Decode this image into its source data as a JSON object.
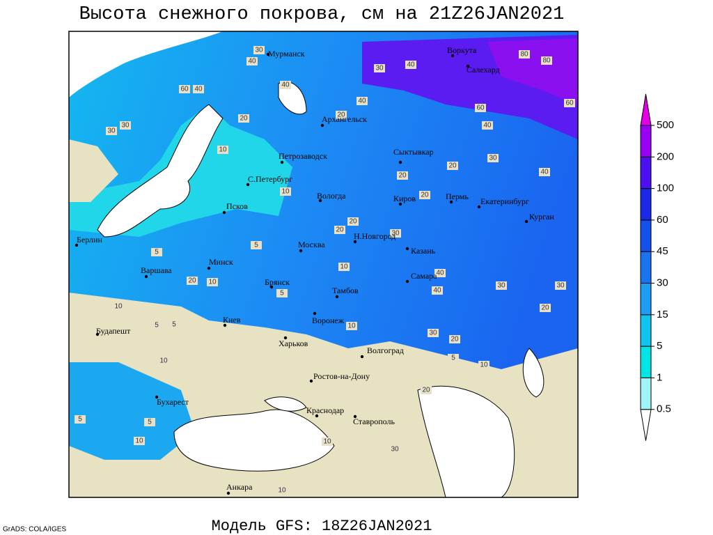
{
  "header": {
    "title": "Высота снежного покрова, см на 21Z26JAN2021"
  },
  "map": {
    "cities": [
      "Мурманск",
      "Воркута",
      "Салехард",
      "Архангельск",
      "Петрозаводск",
      "Сыктывкар",
      "С.Петербург",
      "Вологда",
      "Киров",
      "Пермь",
      "Екатеринбург",
      "Курган",
      "Псков",
      "Берлин",
      "Москва",
      "Н.Новгород",
      "Казань",
      "Минск",
      "Варшава",
      "Самара",
      "Брянск",
      "Тамбов",
      "Киев",
      "Воронеж",
      "Будапешт",
      "Харьков",
      "Волгоград",
      "Ростов-на-Дону",
      "Бухарест",
      "Краснодар",
      "Ставрополь",
      "Анкара"
    ],
    "contour_labels": [
      30,
      40,
      30,
      60,
      40,
      40,
      30,
      20,
      10,
      20,
      30,
      40,
      60,
      80,
      80,
      60,
      40,
      40,
      20,
      20,
      30,
      40,
      20,
      10,
      5,
      20,
      20,
      30,
      30,
      40,
      40,
      30,
      30,
      20,
      20,
      10,
      5,
      10,
      10,
      5,
      10,
      5,
      10,
      5,
      5,
      10,
      20,
      10,
      30,
      5,
      10,
      5,
      10,
      20
    ]
  },
  "legend": {
    "levels": [
      0.5,
      1,
      5,
      15,
      30,
      45,
      60,
      100,
      200,
      500
    ],
    "colors": [
      "#ffffff",
      "#a0f4f8",
      "#00e6e6",
      "#10c4f0",
      "#1c9cf4",
      "#1a74f0",
      "#1450ec",
      "#1c28e8",
      "#4a10f0",
      "#9a00f4",
      "#e400e4"
    ]
  },
  "footer": {
    "model": "Модель GFS: 18Z26JAN2021",
    "credit": "GrADS: COLA/IGES"
  }
}
